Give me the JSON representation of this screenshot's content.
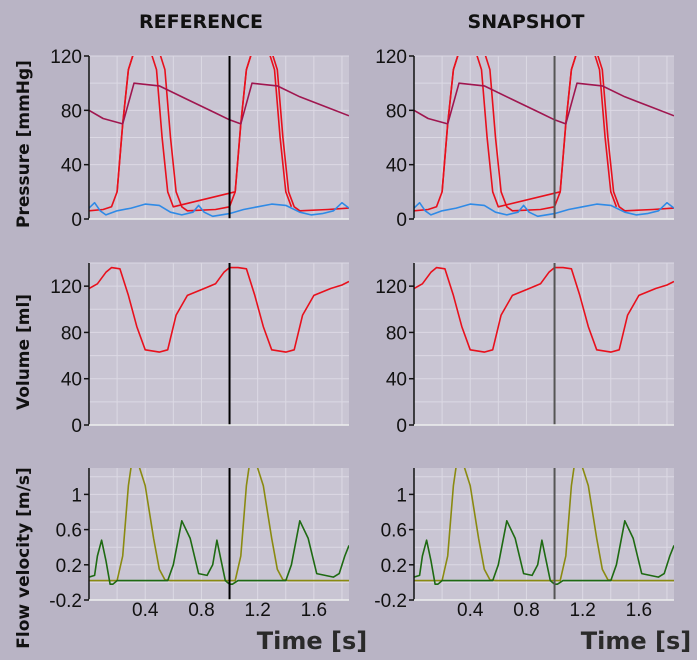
{
  "columns": [
    "REFERENCE",
    "SNAPSHOT"
  ],
  "x_axis": {
    "title": "Time [s]",
    "range": [
      0,
      1.85
    ],
    "ticks": [
      0.4,
      0.8,
      1.2,
      1.6
    ]
  },
  "cursor_time": 1.0,
  "colors": {
    "background": "#b9b4c5",
    "plot_area": "#c9c5d3",
    "grid": "#dcd9e4",
    "red": "#e8101c",
    "aortic": "#a0164f",
    "blue": "#2f8ae6",
    "green": "#1e6a12",
    "olive": "#8a8a10",
    "cursor_reference": "#000000",
    "cursor_snapshot": "#555555"
  },
  "chart_data": [
    {
      "panel": "pressure",
      "type": "line",
      "ylabel": "Pressure [mmHg]",
      "ylim": [
        0,
        120
      ],
      "yticks": [
        0,
        40,
        80,
        120
      ],
      "grid": true,
      "series": [
        {
          "color": "red",
          "x": [
            0,
            0.1,
            0.16,
            0.2,
            0.24,
            0.28,
            0.32,
            0.5,
            0.54,
            0.58,
            0.62,
            0.66,
            0.7,
            0.9,
            1.0,
            1.04,
            1.08,
            1.12,
            1.16,
            1.3,
            1.34,
            1.38,
            1.42,
            1.46,
            1.5,
            1.7,
            1.85
          ],
          "y": [
            6,
            7,
            9,
            20,
            70,
            110,
            123,
            123,
            110,
            60,
            20,
            9,
            6,
            7,
            9,
            20,
            70,
            110,
            123,
            123,
            110,
            60,
            20,
            9,
            6,
            7,
            8
          ]
        },
        {
          "color": "red",
          "x": [
            0.2,
            0.24,
            0.28,
            0.32,
            0.44,
            0.48,
            0.52,
            0.56,
            0.6,
            1.04,
            1.08,
            1.12,
            1.16,
            1.28,
            1.32,
            1.36,
            1.4,
            1.44
          ],
          "y": [
            20,
            70,
            110,
            123,
            123,
            110,
            60,
            20,
            9,
            20,
            70,
            110,
            123,
            123,
            110,
            60,
            20,
            9
          ]
        },
        {
          "color": "aortic",
          "x": [
            0,
            0.1,
            0.24,
            0.32,
            0.5,
            0.7,
            0.9,
            1.0,
            1.08,
            1.16,
            1.34,
            1.5,
            1.7,
            1.85
          ],
          "y": [
            80,
            74,
            70,
            100,
            98,
            88,
            78,
            73,
            70,
            100,
            98,
            90,
            82,
            76
          ]
        },
        {
          "color": "blue",
          "x": [
            0,
            0.04,
            0.08,
            0.12,
            0.2,
            0.3,
            0.4,
            0.5,
            0.58,
            0.66,
            0.74,
            0.78,
            0.82,
            0.88,
            1.0,
            1.1,
            1.2,
            1.3,
            1.4,
            1.5,
            1.58,
            1.66,
            1.74,
            1.8,
            1.85
          ],
          "y": [
            8,
            12,
            6,
            3,
            6,
            8,
            11,
            10,
            5,
            3,
            5,
            10,
            5,
            2,
            4,
            7,
            9,
            11,
            10,
            5,
            3,
            4,
            6,
            12,
            8
          ]
        }
      ]
    },
    {
      "panel": "volume",
      "type": "line",
      "ylabel": "Volume [ml]",
      "ylim": [
        0,
        140
      ],
      "yticks": [
        0,
        40,
        80,
        120
      ],
      "grid": true,
      "series": [
        {
          "color": "red",
          "x": [
            0,
            0.06,
            0.12,
            0.16,
            0.22,
            0.28,
            0.34,
            0.4,
            0.5,
            0.56,
            0.62,
            0.7,
            0.82,
            0.9,
            0.96,
            1.0,
            1.06,
            1.12,
            1.18,
            1.24,
            1.3,
            1.4,
            1.46,
            1.52,
            1.6,
            1.72,
            1.8,
            1.85
          ],
          "y": [
            118,
            122,
            132,
            136,
            135,
            112,
            85,
            65,
            63,
            65,
            95,
            112,
            118,
            122,
            132,
            136,
            136,
            135,
            112,
            85,
            65,
            63,
            65,
            95,
            112,
            118,
            121,
            124
          ]
        }
      ]
    },
    {
      "panel": "flow",
      "type": "line",
      "ylabel": "Flow velocity [m/s]",
      "ylim": [
        -0.2,
        1.3
      ],
      "yticks": [
        -0.2,
        0.2,
        0.6,
        1.0
      ],
      "ytick_labels": [
        "-0.2",
        "0.2",
        "0.6",
        "1"
      ],
      "grid": true,
      "series": [
        {
          "color": "olive",
          "x": [
            0,
            0.2,
            0.24,
            0.28,
            0.3,
            0.34,
            0.4,
            0.46,
            0.5,
            0.54,
            0.58,
            1.04,
            1.08,
            1.12,
            1.14,
            1.18,
            1.24,
            1.3,
            1.34,
            1.38,
            1.42,
            1.85
          ],
          "y": [
            0.02,
            0.02,
            0.3,
            1.1,
            1.32,
            1.4,
            1.1,
            0.5,
            0.15,
            0.03,
            0.02,
            0.02,
            0.3,
            1.1,
            1.32,
            1.4,
            1.1,
            0.5,
            0.15,
            0.03,
            0.02,
            0.02
          ]
        },
        {
          "color": "green",
          "x": [
            0,
            0.04,
            0.06,
            0.09,
            0.12,
            0.15,
            0.17,
            0.2,
            0.24,
            0.28,
            0.56,
            0.6,
            0.66,
            0.72,
            0.78,
            0.84,
            0.88,
            0.91,
            0.94,
            0.97,
            1.0,
            1.02,
            1.06,
            1.12,
            1.4,
            1.44,
            1.5,
            1.56,
            1.62,
            1.68,
            1.74,
            1.78,
            1.82,
            1.85
          ],
          "y": [
            0.06,
            0.08,
            0.3,
            0.48,
            0.25,
            -0.02,
            -0.02,
            0.02,
            0.02,
            0.02,
            0.02,
            0.2,
            0.7,
            0.5,
            0.1,
            0.08,
            0.2,
            0.48,
            0.25,
            0.02,
            -0.02,
            -0.02,
            0.02,
            0.02,
            0.02,
            0.2,
            0.7,
            0.5,
            0.1,
            0.08,
            0.06,
            0.1,
            0.3,
            0.42
          ]
        }
      ]
    }
  ]
}
